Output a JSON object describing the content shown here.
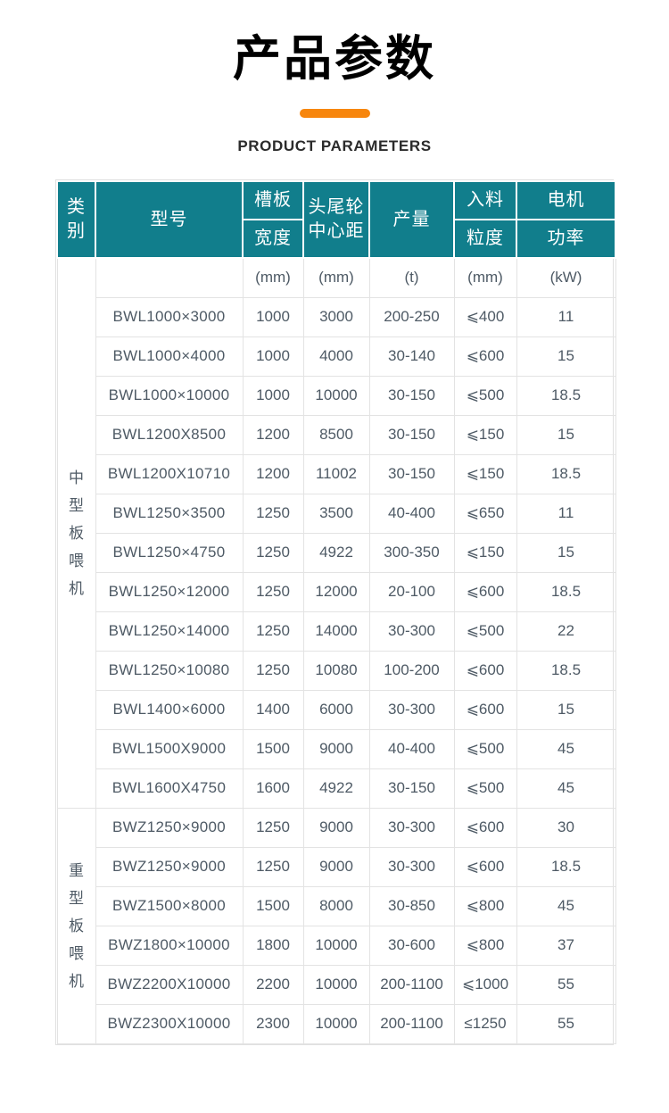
{
  "page": {
    "title": "产品参数",
    "subtitle": "PRODUCT PARAMETERS",
    "accent_color": "#F7860D",
    "header_bg_color": "#117E8C",
    "border_color": "#E3E3E3",
    "text_color": "#4E5A65"
  },
  "table": {
    "header": {
      "category": "类\n别",
      "model": "型号",
      "trough_width_top": "槽板",
      "trough_width_bottom": "宽度",
      "center_distance": "头尾轮\n中心距",
      "capacity": "产量",
      "feed_size_top": "入料",
      "feed_size_bottom": "粒度",
      "motor_power_top": "电机",
      "motor_power_bottom": "功率"
    },
    "units": {
      "trough_width": "(mm)",
      "center_distance": "(mm)",
      "capacity": "(t)",
      "feed_size": "(mm)",
      "motor_power": "(kW)"
    },
    "groups": [
      {
        "category": "中型板喂机",
        "rows": [
          {
            "model": "BWL1000×3000",
            "trough_width": "1000",
            "center_distance": "3000",
            "capacity": "200-250",
            "feed_size": "⩽400",
            "motor_power": "11"
          },
          {
            "model": "BWL1000×4000",
            "trough_width": "1000",
            "center_distance": "4000",
            "capacity": "30-140",
            "feed_size": "⩽600",
            "motor_power": "15"
          },
          {
            "model": "BWL1000×10000",
            "trough_width": "1000",
            "center_distance": "10000",
            "capacity": "30-150",
            "feed_size": "⩽500",
            "motor_power": "18.5"
          },
          {
            "model": "BWL1200X8500",
            "trough_width": "1200",
            "center_distance": "8500",
            "capacity": "30-150",
            "feed_size": "⩽150",
            "motor_power": "15"
          },
          {
            "model": "BWL1200X10710",
            "trough_width": "1200",
            "center_distance": "11002",
            "capacity": "30-150",
            "feed_size": "⩽150",
            "motor_power": "18.5"
          },
          {
            "model": "BWL1250×3500",
            "trough_width": "1250",
            "center_distance": "3500",
            "capacity": "40-400",
            "feed_size": "⩽650",
            "motor_power": "11"
          },
          {
            "model": "BWL1250×4750",
            "trough_width": "1250",
            "center_distance": "4922",
            "capacity": "300-350",
            "feed_size": "⩽150",
            "motor_power": "15"
          },
          {
            "model": "BWL1250×12000",
            "trough_width": "1250",
            "center_distance": "12000",
            "capacity": "20-100",
            "feed_size": "⩽600",
            "motor_power": "18.5"
          },
          {
            "model": "BWL1250×14000",
            "trough_width": "1250",
            "center_distance": "14000",
            "capacity": "30-300",
            "feed_size": "⩽500",
            "motor_power": "22"
          },
          {
            "model": "BWL1250×10080",
            "trough_width": "1250",
            "center_distance": "10080",
            "capacity": "100-200",
            "feed_size": "⩽600",
            "motor_power": "18.5"
          },
          {
            "model": "BWL1400×6000",
            "trough_width": "1400",
            "center_distance": "6000",
            "capacity": "30-300",
            "feed_size": "⩽600",
            "motor_power": "15"
          },
          {
            "model": "BWL1500X9000",
            "trough_width": "1500",
            "center_distance": "9000",
            "capacity": "40-400",
            "feed_size": "⩽500",
            "motor_power": "45"
          },
          {
            "model": "BWL1600X4750",
            "trough_width": "1600",
            "center_distance": "4922",
            "capacity": "30-150",
            "feed_size": "⩽500",
            "motor_power": "45"
          }
        ]
      },
      {
        "category": "重型板喂机",
        "rows": [
          {
            "model": "BWZ1250×9000",
            "trough_width": "1250",
            "center_distance": "9000",
            "capacity": "30-300",
            "feed_size": "⩽600",
            "motor_power": "30"
          },
          {
            "model": "BWZ1250×9000",
            "trough_width": "1250",
            "center_distance": "9000",
            "capacity": "30-300",
            "feed_size": "⩽600",
            "motor_power": "18.5"
          },
          {
            "model": "BWZ1500×8000",
            "trough_width": "1500",
            "center_distance": "8000",
            "capacity": "30-850",
            "feed_size": "⩽800",
            "motor_power": "45"
          },
          {
            "model": "BWZ1800×10000",
            "trough_width": "1800",
            "center_distance": "10000",
            "capacity": "30-600",
            "feed_size": "⩽800",
            "motor_power": "37"
          },
          {
            "model": "BWZ2200X10000",
            "trough_width": "2200",
            "center_distance": "10000",
            "capacity": "200-1100",
            "feed_size": "⩽1000",
            "motor_power": "55"
          },
          {
            "model": "BWZ2300X10000",
            "trough_width": "2300",
            "center_distance": "10000",
            "capacity": "200-1100",
            "feed_size": "≤1250",
            "motor_power": "55"
          }
        ]
      }
    ]
  }
}
